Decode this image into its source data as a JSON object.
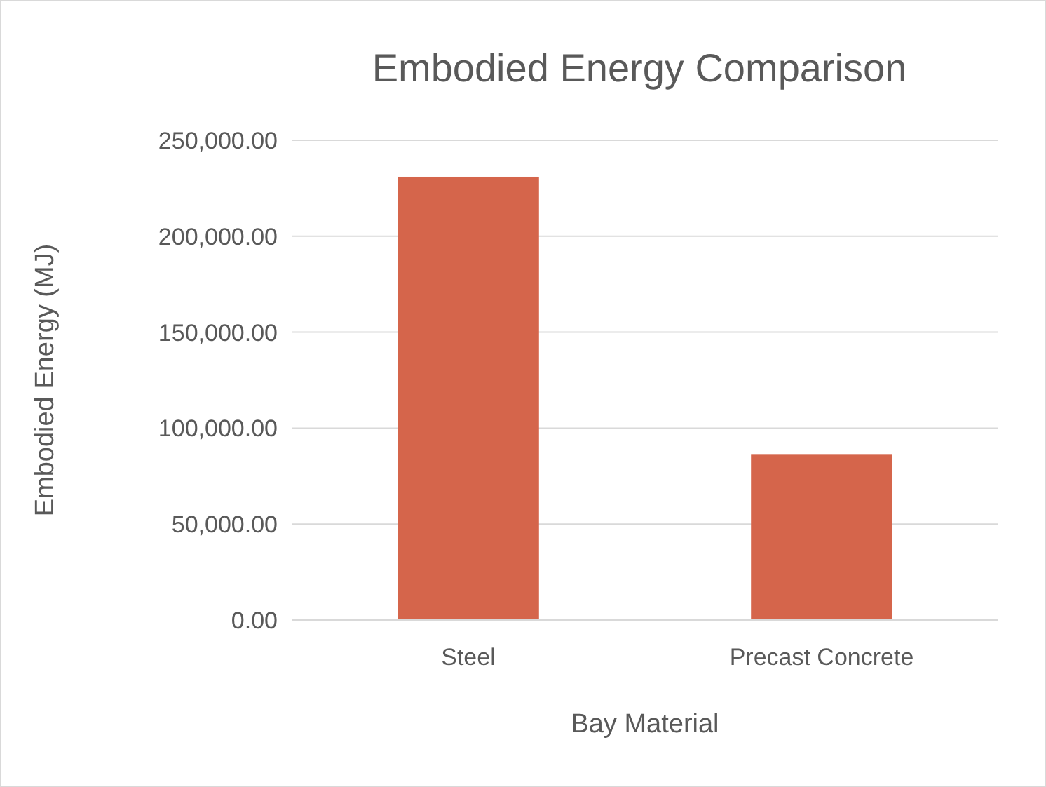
{
  "chart_data": {
    "type": "bar",
    "title": "Embodied Energy Comparison",
    "xlabel": "Bay Material",
    "ylabel": "Embodied Energy (MJ)",
    "categories": [
      "Steel",
      "Precast Concrete"
    ],
    "values": [
      231000,
      86500
    ],
    "color": "#d5654b",
    "ylim": [
      0,
      250000
    ],
    "yticks": [
      {
        "value": 0,
        "label": "0.00"
      },
      {
        "value": 50000,
        "label": "50,000.00"
      },
      {
        "value": 100000,
        "label": "100,000.00"
      },
      {
        "value": 150000,
        "label": "150,000.00"
      },
      {
        "value": 200000,
        "label": "200,000.00"
      },
      {
        "value": 250000,
        "label": "250,000.00"
      }
    ],
    "grid": "y"
  }
}
